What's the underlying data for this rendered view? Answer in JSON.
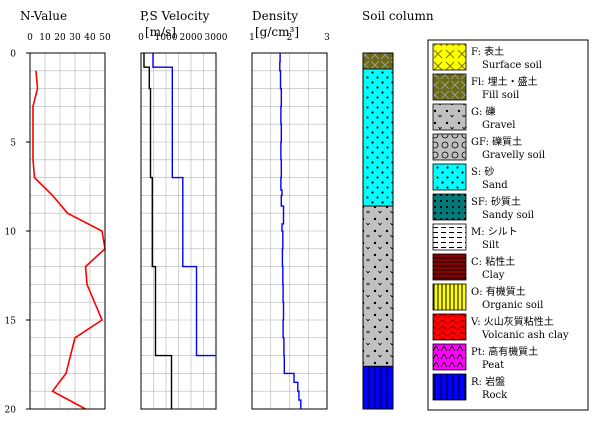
{
  "chart_data": [
    {
      "type": "line",
      "title": "N-Value",
      "xlabel": "",
      "ylabel": "",
      "xlim": [
        0,
        50
      ],
      "ylim": [
        0,
        20
      ],
      "y_inverted": true,
      "xticks": [
        "0",
        "10",
        "20",
        "30",
        "40",
        "50"
      ],
      "yticks": [
        "0",
        "5",
        "10",
        "15",
        "20"
      ],
      "grid": true,
      "series": [
        {
          "color": "#ff0000",
          "points": [
            [
              4,
              1.0
            ],
            [
              5,
              2.0
            ],
            [
              2,
              3.0
            ],
            [
              2,
              4.0
            ],
            [
              2,
              5.0
            ],
            [
              2,
              6.0
            ],
            [
              3,
              7.0
            ],
            [
              15,
              8.0
            ],
            [
              25,
              9.0
            ],
            [
              48,
              10.0
            ],
            [
              50,
              11.0
            ],
            [
              37,
              12.0
            ],
            [
              38,
              13.0
            ],
            [
              43,
              14.0
            ],
            [
              48,
              15.0
            ],
            [
              30,
              16.0
            ],
            [
              27,
              17.0
            ],
            [
              24,
              18.0
            ],
            [
              15,
              19.0
            ],
            [
              37,
              20.0
            ]
          ]
        }
      ]
    },
    {
      "type": "line",
      "title": "P,S Velocity",
      "xlabel": "[m/s]",
      "ylabel": "",
      "xlim": [
        0,
        3000
      ],
      "ylim": [
        0,
        20
      ],
      "y_inverted": true,
      "xticks": [
        "0",
        "1000",
        "2000",
        "3000"
      ],
      "grid": true,
      "series": [
        {
          "color": "#000000",
          "points": [
            [
              120,
              0
            ],
            [
              120,
              0.8
            ],
            [
              330,
              0.8
            ],
            [
              330,
              2.0
            ],
            [
              380,
              2.0
            ],
            [
              380,
              7.0
            ],
            [
              450,
              7.0
            ],
            [
              450,
              12.0
            ],
            [
              580,
              12.0
            ],
            [
              580,
              17.0
            ],
            [
              1220,
              17.0
            ],
            [
              1220,
              20.0
            ]
          ]
        },
        {
          "color": "#0000ff",
          "points": [
            [
              480,
              0
            ],
            [
              480,
              0.8
            ],
            [
              1250,
              0.8
            ],
            [
              1250,
              7.0
            ],
            [
              1670,
              7.0
            ],
            [
              1670,
              12.0
            ],
            [
              2220,
              12.0
            ],
            [
              2220,
              17.0
            ],
            [
              3000,
              17.0
            ]
          ]
        }
      ]
    },
    {
      "type": "line",
      "title": "Density",
      "xlabel": "[g/cm³]",
      "ylabel": "",
      "xlim": [
        1,
        3
      ],
      "ylim": [
        0,
        20
      ],
      "y_inverted": true,
      "xticks": [
        "1",
        "2",
        "3"
      ],
      "grid": true,
      "series": [
        {
          "color": "#0000ff",
          "points": [
            [
              1.75,
              0
            ],
            [
              1.75,
              0.5
            ],
            [
              1.74,
              0.5
            ],
            [
              1.74,
              1.0
            ],
            [
              1.76,
              1.0
            ],
            [
              1.76,
              2.0
            ],
            [
              1.78,
              2.0
            ],
            [
              1.78,
              3.0
            ],
            [
              1.77,
              3.0
            ],
            [
              1.77,
              4.0
            ],
            [
              1.78,
              4.0
            ],
            [
              1.78,
              5.0
            ],
            [
              1.77,
              5.0
            ],
            [
              1.77,
              6.0
            ],
            [
              1.78,
              6.0
            ],
            [
              1.78,
              7.0
            ],
            [
              1.77,
              7.0
            ],
            [
              1.77,
              7.7
            ],
            [
              1.8,
              7.7
            ],
            [
              1.8,
              8.0
            ],
            [
              1.78,
              8.0
            ],
            [
              1.78,
              8.6
            ],
            [
              1.84,
              8.6
            ],
            [
              1.84,
              9.6
            ],
            [
              1.8,
              9.6
            ],
            [
              1.8,
              10.0
            ],
            [
              1.82,
              10.0
            ],
            [
              1.82,
              11.0
            ],
            [
              1.81,
              11.0
            ],
            [
              1.81,
              12.0
            ],
            [
              1.82,
              12.0
            ],
            [
              1.82,
              13.0
            ],
            [
              1.83,
              13.0
            ],
            [
              1.83,
              14.0
            ],
            [
              1.84,
              14.0
            ],
            [
              1.84,
              15.0
            ],
            [
              1.83,
              15.0
            ],
            [
              1.83,
              16.0
            ],
            [
              1.85,
              16.0
            ],
            [
              1.85,
              17.0
            ],
            [
              1.86,
              17.0
            ],
            [
              1.86,
              18.0
            ],
            [
              2.12,
              18.0
            ],
            [
              2.12,
              18.5
            ],
            [
              2.22,
              18.5
            ],
            [
              2.22,
              19.0
            ],
            [
              2.25,
              19.0
            ],
            [
              2.25,
              19.5
            ],
            [
              2.3,
              19.5
            ],
            [
              2.3,
              20.0
            ]
          ]
        }
      ]
    }
  ],
  "soil_column": {
    "title": "Soil column",
    "layers": [
      {
        "code": "Fl",
        "top": 0.0,
        "bottom": 0.9
      },
      {
        "code": "S",
        "top": 0.9,
        "bottom": 8.6
      },
      {
        "code": "G",
        "top": 8.6,
        "bottom": 17.6
      },
      {
        "code": "R",
        "top": 17.6,
        "bottom": 20.0
      }
    ]
  },
  "legend": {
    "items": [
      {
        "code": "F",
        "jp": "F: 表土",
        "en": "Surface soil",
        "color": "#ffff00"
      },
      {
        "code": "Fl",
        "jp": "Fl: 埋土・盛土",
        "en": "Fill soil",
        "color": "#6b6b14"
      },
      {
        "code": "G",
        "jp": "G: 礫",
        "en": "Gravel",
        "color": "#c0c0c0"
      },
      {
        "code": "GF",
        "jp": "GF: 礫質土",
        "en": "Gravelly soil",
        "color": "#c0c0c0"
      },
      {
        "code": "S",
        "jp": "S: 砂",
        "en": "Sand",
        "color": "#00ffff"
      },
      {
        "code": "SF",
        "jp": "SF: 砂質土",
        "en": "Sandy soil",
        "color": "#007a7a"
      },
      {
        "code": "M",
        "jp": "M: シルト",
        "en": "Silt",
        "color": "#ffffff"
      },
      {
        "code": "C",
        "jp": "C: 粘性土",
        "en": "Clay",
        "color": "#8b0000"
      },
      {
        "code": "O",
        "jp": "O: 有機質土",
        "en": "Organic soil",
        "color": "#ffff00"
      },
      {
        "code": "V",
        "jp": "V: 火山灰質粘性土",
        "en": "Volcanic ash clay",
        "color": "#ff0000"
      },
      {
        "code": "Pt",
        "jp": "Pt: 高有機質土",
        "en": "Peat",
        "color": "#ff00ff"
      },
      {
        "code": "R",
        "jp": "R: 岩盤",
        "en": "Rock",
        "color": "#0000ff"
      }
    ]
  }
}
